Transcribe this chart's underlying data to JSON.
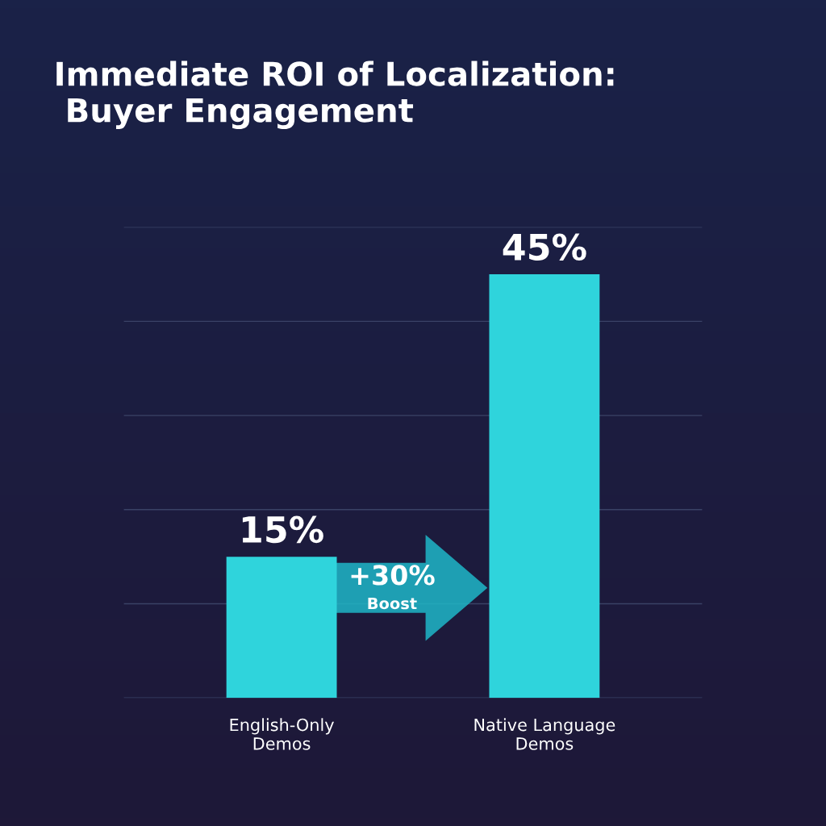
{
  "chart_data": {
    "type": "bar",
    "title": "Immediate ROI of Localization:\n Buyer Engagement",
    "categories": [
      "English-Only\nDemos",
      "Native Language\nDemos"
    ],
    "values": [
      15,
      45
    ],
    "color": "#2fd4dc",
    "data_labels": true,
    "value_labels": [
      "15%",
      "45%"
    ],
    "ylim": [
      0,
      50
    ],
    "yticks": [
      {
        "value": 0,
        "label": null
      },
      {
        "value": 10,
        "label": null
      },
      {
        "value": 20,
        "label": null
      },
      {
        "value": 30,
        "label": null
      },
      {
        "value": 40,
        "label": null
      },
      {
        "value": 50,
        "label": null
      }
    ],
    "tick_labels": "x",
    "grid": "y",
    "legend": false,
    "annotations": [
      "+30%",
      "Boost"
    ]
  }
}
